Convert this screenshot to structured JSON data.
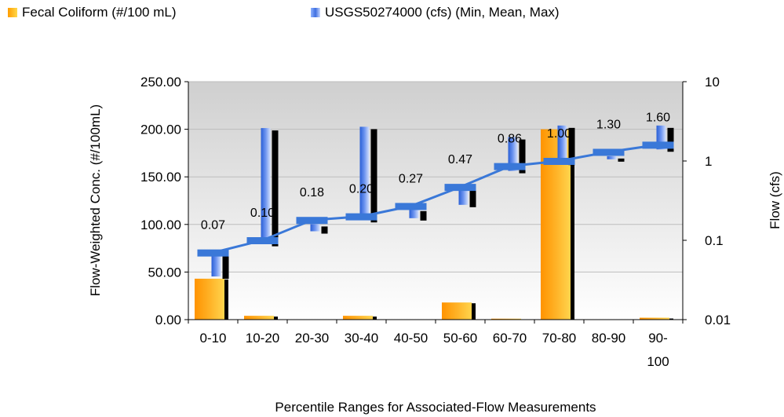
{
  "colors": {
    "fecal_bar": "#ffa51a",
    "flow_range": "#4f7fe8",
    "flow_line": "#3a78d8",
    "shadow": "#000000",
    "plot_bg": "#e8e8e8"
  },
  "chart_data": {
    "type": "bar",
    "xlabel": "Percentile Ranges for Associated-Flow Measurements",
    "ylabel": "Flow-Weighted Conc. (#/100mL)",
    "y2label": "Flow (cfs)",
    "ylim": [
      0,
      250
    ],
    "y_ticks": [
      "0.00",
      "50.00",
      "100.00",
      "150.00",
      "200.00",
      "250.00"
    ],
    "y2lim": [
      0.01,
      10
    ],
    "y2_scale": "log",
    "y2_ticks": [
      "0.01",
      "0.1",
      "1",
      "10"
    ],
    "categories": [
      "0-10",
      "10-20",
      "20-30",
      "30-40",
      "40-50",
      "50-60",
      "60-70",
      "70-80",
      "80-90",
      "90-100"
    ],
    "category_labels": [
      [
        "0-10"
      ],
      [
        "10-20"
      ],
      [
        "20-30"
      ],
      [
        "30-40"
      ],
      [
        "40-50"
      ],
      [
        "50-60"
      ],
      [
        "60-70"
      ],
      [
        "70-80"
      ],
      [
        "80-90"
      ],
      [
        "90-",
        "100"
      ]
    ],
    "series": [
      {
        "name": "Fecal Coliform (#/100 mL)",
        "type": "bar",
        "axis": "left",
        "values": [
          43,
          4,
          0,
          4,
          0,
          18,
          1,
          200,
          0,
          2
        ]
      },
      {
        "name": "USGS50274000 (cfs) (Min, Mean, Max)",
        "type": "range-line",
        "axis": "right",
        "min": [
          0.035,
          0.09,
          0.13,
          0.18,
          0.19,
          0.28,
          0.75,
          0.95,
          1.05,
          1.4
        ],
        "mean": [
          0.07,
          0.1,
          0.18,
          0.2,
          0.27,
          0.47,
          0.86,
          1.0,
          1.3,
          1.6
        ],
        "max": [
          0.07,
          2.6,
          0.16,
          2.7,
          0.25,
          0.5,
          2.0,
          2.8,
          1.15,
          2.8
        ],
        "labels": [
          "0.07",
          "0.10",
          "0.18",
          "0.20",
          "0.27",
          "0.47",
          "0.86",
          "1.00",
          "1.30",
          "1.60"
        ]
      }
    ],
    "legend_position": "top"
  }
}
